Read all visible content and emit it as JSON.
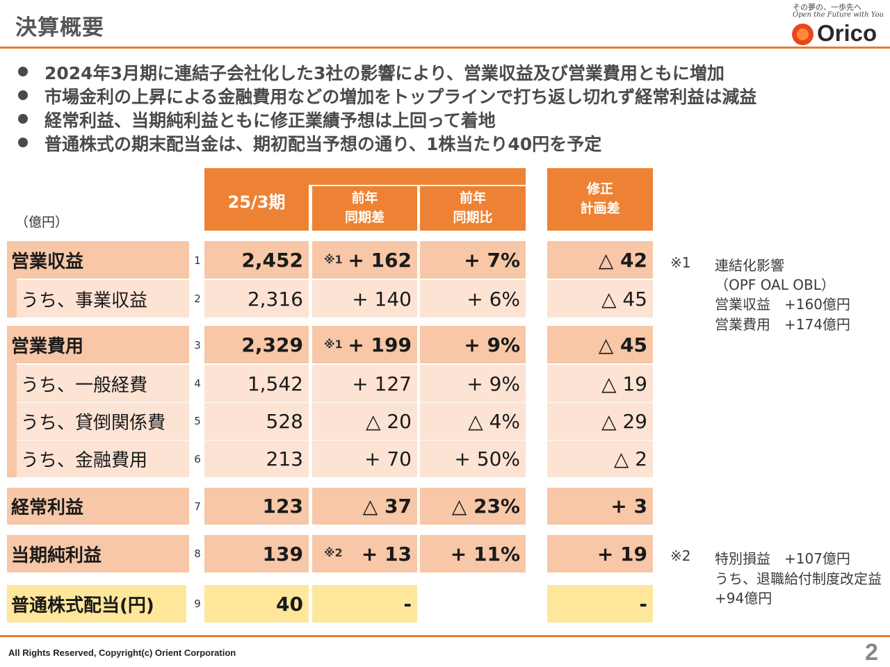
{
  "title": "決算概要",
  "brand": {
    "tagline_jp": "その夢の、一歩先へ",
    "tagline_en": "Open the Future with You",
    "logo_text": "Orico",
    "accent_color": "#e87a2e"
  },
  "bullets": [
    "2024年3月期に連結子会社化した3社の影響により、営業収益及び営業費用ともに増加",
    "市場金利の上昇による金融費用などの増加をトップラインで打ち返し切れず経常利益は減益",
    "経常利益、当期純利益ともに修正業績予想は上回って着地",
    "普通株式の期末配当金は、期初配当予想の通り、1株当たり40円を予定"
  ],
  "table": {
    "unit": "（億円）",
    "headers": {
      "current": "25/3期",
      "yoy_diff_1": "前年",
      "yoy_diff_2": "同期差",
      "yoy_ratio_1": "前年",
      "yoy_ratio_2": "同期比",
      "plan_diff_1": "修正",
      "plan_diff_2": "計画差"
    },
    "rows": [
      {
        "no": "1",
        "label": "営業収益",
        "current": "2,452",
        "mark": "※1",
        "diff": "+ 162",
        "ratio": "+ 7%",
        "plan": "△ 42"
      },
      {
        "no": "2",
        "label": "うち、事業収益",
        "current": "2,316",
        "mark": "",
        "diff": "+ 140",
        "ratio": "+ 6%",
        "plan": "△ 45"
      },
      {
        "no": "3",
        "label": "営業費用",
        "current": "2,329",
        "mark": "※1",
        "diff": "+ 199",
        "ratio": "+ 9%",
        "plan": "△ 45"
      },
      {
        "no": "4",
        "label": "うち、一般経費",
        "current": "1,542",
        "mark": "",
        "diff": "+ 127",
        "ratio": "+ 9%",
        "plan": "△ 19"
      },
      {
        "no": "5",
        "label": "うち、貸倒関係費",
        "current": "528",
        "mark": "",
        "diff": "△ 20",
        "ratio": "△ 4%",
        "plan": "△ 29"
      },
      {
        "no": "6",
        "label": "うち、金融費用",
        "current": "213",
        "mark": "",
        "diff": "+ 70",
        "ratio": "+ 50%",
        "plan": "△ 2"
      },
      {
        "no": "7",
        "label": "経常利益",
        "current": "123",
        "mark": "",
        "diff": "△ 37",
        "ratio": "△ 23%",
        "plan": "+ 3"
      },
      {
        "no": "8",
        "label": "当期純利益",
        "current": "139",
        "mark": "※2",
        "diff": "+ 13",
        "ratio": "+ 11%",
        "plan": "+ 19"
      },
      {
        "no": "9",
        "label": "普通株式配当(円)",
        "current": "40",
        "mark": "",
        "diff": "-",
        "ratio": "",
        "plan": "-"
      }
    ]
  },
  "notes": {
    "note1": [
      "※1",
      "連結化影響",
      "（OPF OAL OBL）",
      "営業収益　+160億円",
      "営業費用　+174億円"
    ],
    "note2": [
      "※2",
      "特別損益　+107億円",
      "うち、退職給付制度改定益",
      "+94億円"
    ]
  },
  "footer": {
    "copyright": "All Rights Reserved, Copyright(c) Orient Corporation",
    "page": "2"
  }
}
